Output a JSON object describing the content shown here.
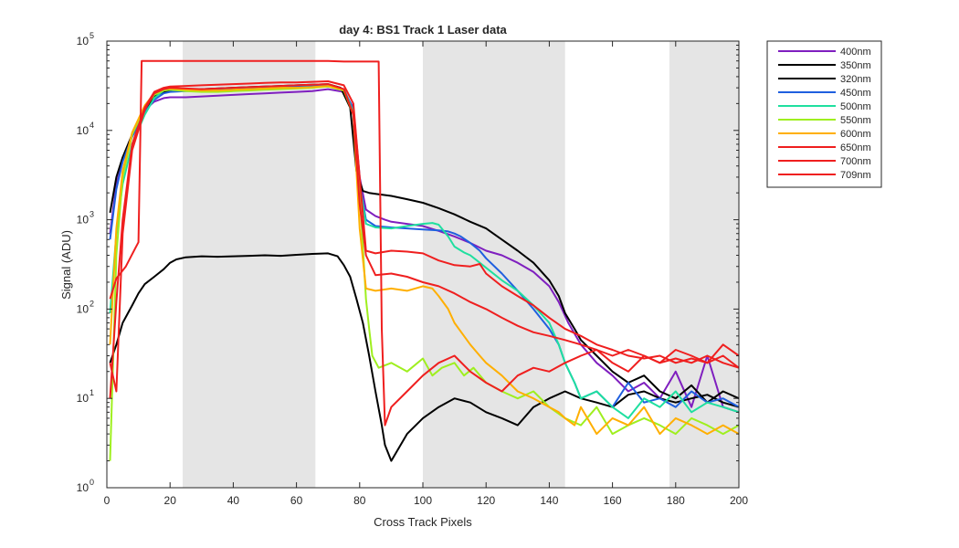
{
  "chart_data": {
    "type": "line",
    "title": "day 4: BS1  Track 1 Laser data",
    "xlabel": "Cross Track Pixels",
    "ylabel": "Signal (ADU)",
    "xlim": [
      0,
      200
    ],
    "ylim": [
      1,
      100000
    ],
    "yscale": "log",
    "grid": false,
    "legend_position": "outside-top-right",
    "x_ticks": [
      "0",
      "20",
      "40",
      "60",
      "80",
      "100",
      "120",
      "140",
      "160",
      "180",
      "200"
    ],
    "y_ticks": [
      {
        "base": "10",
        "exp": "0"
      },
      {
        "base": "10",
        "exp": "1"
      },
      {
        "base": "10",
        "exp": "2"
      },
      {
        "base": "10",
        "exp": "3"
      },
      {
        "base": "10",
        "exp": "4"
      },
      {
        "base": "10",
        "exp": "5"
      }
    ],
    "shaded_regions": [
      [
        24,
        66
      ],
      [
        100,
        145
      ],
      [
        178,
        200
      ]
    ],
    "series": [
      {
        "name": "400nm",
        "color": "#7f1fbf",
        "x": [
          1,
          3,
          6,
          9,
          12,
          15,
          18,
          20,
          25,
          30,
          35,
          40,
          45,
          50,
          55,
          60,
          65,
          70,
          75,
          78,
          80,
          82,
          85,
          88,
          90,
          95,
          100,
          105,
          110,
          115,
          120,
          125,
          130,
          135,
          140,
          143,
          146,
          150,
          155,
          160,
          165,
          170,
          175,
          180,
          185,
          190,
          195,
          200
        ],
        "y": [
          700,
          2500,
          6000,
          11000,
          17000,
          21000,
          23000,
          23500,
          23500,
          24000,
          24500,
          25000,
          25500,
          26000,
          26500,
          27000,
          27500,
          29000,
          27000,
          18000,
          3000,
          1300,
          1100,
          1000,
          950,
          900,
          850,
          750,
          650,
          550,
          450,
          400,
          330,
          260,
          180,
          120,
          70,
          40,
          25,
          18,
          12,
          15,
          10,
          20,
          8,
          30,
          8,
          7
        ]
      },
      {
        "name": "350nm",
        "color": "#000000",
        "x": [
          1,
          3,
          5,
          8,
          10,
          12,
          15,
          18,
          20,
          22,
          25,
          30,
          35,
          40,
          45,
          50,
          55,
          60,
          65,
          70,
          73,
          75,
          77,
          79,
          81,
          83,
          85,
          87,
          88,
          90,
          95,
          100,
          105,
          110,
          115,
          120,
          125,
          130,
          135,
          140,
          145,
          150,
          155,
          160,
          165,
          170,
          175,
          180,
          185,
          190,
          195,
          200
        ],
        "y": [
          25,
          40,
          70,
          110,
          150,
          190,
          230,
          280,
          330,
          360,
          380,
          390,
          385,
          390,
          395,
          400,
          395,
          405,
          415,
          420,
          390,
          310,
          230,
          130,
          70,
          30,
          12,
          5,
          3,
          2,
          4,
          6,
          8,
          10,
          9,
          7,
          6,
          5,
          8,
          10,
          12,
          10,
          9,
          8,
          11,
          12,
          10,
          9,
          10,
          11,
          9,
          8
        ]
      },
      {
        "name": "320nm",
        "color": "#000000",
        "x": [
          1,
          3,
          5,
          8,
          12,
          15,
          18,
          20,
          25,
          30,
          35,
          40,
          45,
          50,
          55,
          60,
          65,
          70,
          74,
          77,
          79,
          81,
          83,
          85,
          90,
          95,
          100,
          105,
          110,
          115,
          120,
          125,
          130,
          135,
          140,
          143,
          145,
          148,
          150,
          155,
          160,
          165,
          170,
          175,
          180,
          185,
          190,
          195,
          200
        ],
        "y": [
          1200,
          3000,
          5000,
          9000,
          17000,
          24000,
          27000,
          28000,
          28500,
          29000,
          29500,
          30000,
          30500,
          31000,
          31500,
          32000,
          32500,
          33000,
          30000,
          18000,
          3500,
          2100,
          2000,
          1950,
          1850,
          1700,
          1550,
          1350,
          1150,
          950,
          800,
          600,
          450,
          330,
          210,
          140,
          90,
          60,
          45,
          30,
          20,
          15,
          18,
          12,
          10,
          14,
          9,
          12,
          10
        ]
      },
      {
        "name": "450nm",
        "color": "#1f5fdf",
        "x": [
          1,
          3,
          5,
          8,
          12,
          15,
          18,
          20,
          25,
          30,
          35,
          40,
          45,
          50,
          55,
          60,
          65,
          70,
          75,
          78,
          80,
          82,
          85,
          90,
          95,
          100,
          105,
          108,
          110,
          112,
          115,
          118,
          120,
          125,
          130,
          135,
          140,
          143,
          145,
          148,
          150,
          155,
          160,
          165,
          170,
          175,
          180,
          185,
          190,
          195,
          200
        ],
        "y": [
          600,
          2200,
          4500,
          8500,
          16000,
          22000,
          26000,
          27000,
          27500,
          28000,
          28500,
          29000,
          29500,
          30000,
          30500,
          31000,
          31500,
          32000,
          29000,
          17000,
          2500,
          1000,
          850,
          820,
          800,
          780,
          760,
          740,
          700,
          650,
          550,
          450,
          370,
          250,
          160,
          100,
          60,
          40,
          25,
          15,
          10,
          12,
          8,
          15,
          9,
          10,
          8,
          12,
          9,
          10,
          8
        ]
      },
      {
        "name": "500nm",
        "color": "#1fdf9f",
        "x": [
          1,
          3,
          5,
          8,
          12,
          15,
          18,
          20,
          25,
          30,
          35,
          40,
          45,
          50,
          55,
          60,
          65,
          70,
          75,
          78,
          80,
          82,
          85,
          90,
          95,
          100,
          103,
          105,
          108,
          110,
          113,
          115,
          118,
          120,
          125,
          130,
          135,
          140,
          143,
          145,
          148,
          150,
          155,
          160,
          165,
          170,
          175,
          180,
          185,
          190,
          195,
          200
        ],
        "y": [
          90,
          700,
          2500,
          7000,
          15000,
          23000,
          28000,
          29000,
          28500,
          28000,
          28000,
          28500,
          29000,
          29500,
          30000,
          30000,
          30500,
          31000,
          29000,
          16000,
          2500,
          900,
          820,
          800,
          850,
          900,
          920,
          880,
          650,
          500,
          430,
          400,
          330,
          290,
          210,
          160,
          110,
          70,
          40,
          25,
          15,
          10,
          12,
          8,
          6,
          10,
          8,
          12,
          7,
          9,
          8,
          7
        ]
      },
      {
        "name": "550nm",
        "color": "#9fef1f",
        "x": [
          1,
          3,
          5,
          8,
          12,
          15,
          18,
          20,
          25,
          30,
          35,
          40,
          45,
          50,
          55,
          60,
          65,
          70,
          75,
          78,
          80,
          81,
          82,
          83,
          84,
          86,
          90,
          95,
          100,
          103,
          106,
          110,
          113,
          116,
          120,
          125,
          130,
          135,
          140,
          145,
          150,
          155,
          160,
          165,
          170,
          175,
          180,
          185,
          190,
          195,
          200
        ],
        "y": [
          2,
          400,
          3000,
          9000,
          18000,
          25000,
          28000,
          28500,
          27500,
          27000,
          27000,
          27500,
          28000,
          28500,
          29000,
          29500,
          30000,
          31000,
          28000,
          15000,
          2000,
          500,
          130,
          60,
          30,
          22,
          25,
          20,
          28,
          18,
          22,
          25,
          18,
          22,
          15,
          12,
          10,
          12,
          8,
          6,
          5,
          8,
          4,
          5,
          6,
          5,
          4,
          6,
          5,
          4,
          5
        ]
      },
      {
        "name": "600nm",
        "color": "#ffaf00",
        "x": [
          1,
          3,
          5,
          8,
          12,
          15,
          18,
          20,
          25,
          30,
          35,
          40,
          45,
          50,
          55,
          60,
          65,
          70,
          75,
          78,
          80,
          82,
          85,
          90,
          95,
          100,
          103,
          105,
          108,
          110,
          113,
          115,
          118,
          120,
          125,
          130,
          135,
          140,
          143,
          145,
          148,
          150,
          155,
          160,
          165,
          170,
          175,
          180,
          185,
          190,
          195,
          200
        ],
        "y": [
          40,
          800,
          3500,
          9500,
          19000,
          26000,
          29000,
          29500,
          28500,
          28000,
          28000,
          28500,
          29000,
          29500,
          30000,
          30000,
          30500,
          31500,
          28500,
          15000,
          800,
          170,
          160,
          170,
          160,
          180,
          170,
          140,
          100,
          70,
          50,
          40,
          30,
          25,
          18,
          12,
          10,
          8,
          7,
          6,
          5,
          8,
          4,
          6,
          5,
          8,
          4,
          6,
          5,
          4,
          5,
          4
        ]
      },
      {
        "name": "650nm",
        "color": "#ef1f1f",
        "x": [
          1,
          3,
          5,
          8,
          12,
          15,
          18,
          20,
          25,
          30,
          35,
          40,
          45,
          50,
          55,
          60,
          65,
          70,
          75,
          78,
          80,
          82,
          85,
          90,
          95,
          100,
          105,
          110,
          115,
          120,
          125,
          130,
          135,
          140,
          145,
          150,
          155,
          160,
          165,
          170,
          175,
          180,
          185,
          190,
          195,
          200
        ],
        "y": [
          25,
          12,
          700,
          6000,
          17000,
          26000,
          29000,
          30000,
          29500,
          29000,
          29500,
          30000,
          30500,
          31000,
          31500,
          32000,
          32500,
          33000,
          29000,
          15000,
          1500,
          400,
          240,
          250,
          230,
          200,
          180,
          150,
          120,
          100,
          80,
          65,
          55,
          50,
          45,
          40,
          35,
          30,
          35,
          30,
          25,
          28,
          25,
          30,
          25,
          22
        ]
      },
      {
        "name": "700nm",
        "color": "#ef1f1f",
        "x": [
          1,
          3,
          5,
          8,
          12,
          15,
          18,
          20,
          25,
          30,
          35,
          40,
          45,
          50,
          55,
          60,
          65,
          70,
          75,
          78,
          80,
          82,
          85,
          90,
          95,
          100,
          105,
          110,
          115,
          118,
          120,
          125,
          130,
          135,
          140,
          145,
          150,
          155,
          160,
          165,
          170,
          175,
          180,
          185,
          190,
          195,
          200
        ],
        "y": [
          10,
          120,
          1000,
          7000,
          18000,
          27000,
          30000,
          31000,
          31500,
          32000,
          32500,
          33000,
          33500,
          34000,
          34500,
          34500,
          35000,
          35500,
          32000,
          20000,
          3000,
          450,
          420,
          450,
          440,
          420,
          350,
          310,
          300,
          320,
          250,
          180,
          140,
          110,
          80,
          60,
          50,
          40,
          35,
          30,
          28,
          30,
          25,
          28,
          25,
          30,
          22
        ]
      },
      {
        "name": "709nm",
        "color": "#ef1f1f",
        "x": [
          1,
          3,
          6,
          9,
          10,
          11,
          15,
          20,
          25,
          30,
          35,
          40,
          45,
          50,
          55,
          60,
          65,
          70,
          75,
          80,
          85,
          86,
          87,
          88,
          90,
          95,
          100,
          105,
          110,
          115,
          120,
          125,
          130,
          135,
          140,
          145,
          150,
          155,
          160,
          165,
          170,
          175,
          180,
          185,
          190,
          195,
          200
        ],
        "y": [
          130,
          220,
          300,
          480,
          560,
          60000,
          60000,
          60000,
          60000,
          60000,
          60000,
          60000,
          60000,
          60000,
          60000,
          60000,
          60000,
          60000,
          59000,
          59000,
          59000,
          59000,
          60,
          5,
          8,
          12,
          18,
          25,
          30,
          20,
          15,
          12,
          18,
          22,
          20,
          25,
          30,
          35,
          25,
          20,
          30,
          25,
          35,
          30,
          25,
          40,
          30
        ]
      }
    ]
  }
}
